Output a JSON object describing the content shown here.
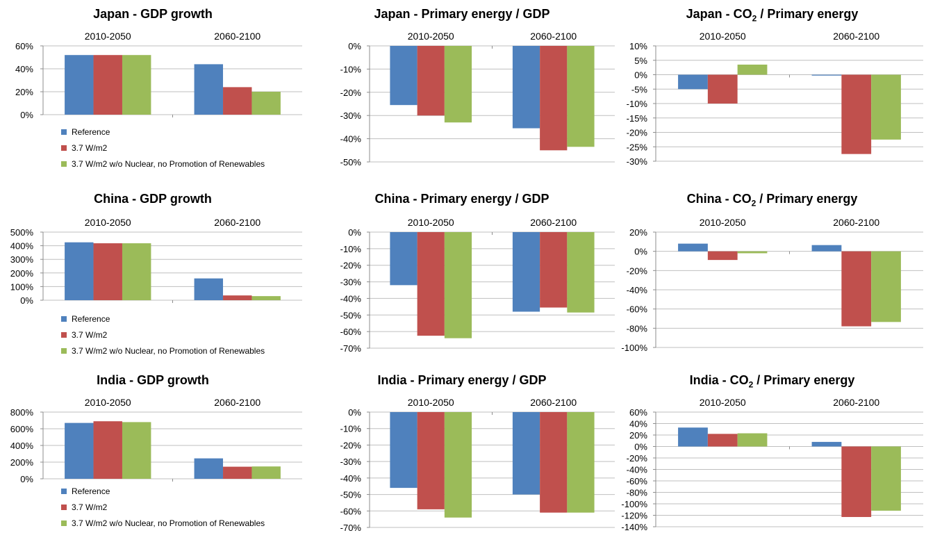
{
  "colors": {
    "reference": "#4F81BD",
    "w37": "#C0504D",
    "w37_nonuc": "#9BBB59"
  },
  "chart_data": [
    {
      "type": "bar",
      "title": "Japan - GDP growth",
      "categories": [
        "2010-2050",
        "2060-2100"
      ],
      "series": [
        {
          "name": "Reference",
          "values": [
            52,
            44
          ]
        },
        {
          "name": "3.7 W/m2",
          "values": [
            52,
            24
          ]
        },
        {
          "name": "3.7 W/m2 w/o Nuclear, no Promotion of Renewables",
          "values": [
            52,
            20
          ]
        }
      ],
      "ylim": [
        0,
        60
      ],
      "yticks": [
        0,
        20,
        40,
        60
      ],
      "ytick_labels": [
        "0%",
        "20%",
        "40%",
        "60%"
      ],
      "legend": "bottom-left"
    },
    {
      "type": "bar",
      "title": "Japan - Primary energy / GDP",
      "categories": [
        "2010-2050",
        "2060-2100"
      ],
      "series": [
        {
          "name": "Reference",
          "values": [
            -25.5,
            -35.5
          ]
        },
        {
          "name": "3.7 W/m2",
          "values": [
            -30,
            -45
          ]
        },
        {
          "name": "3.7 W/m2 w/o Nuclear, no Promotion of Renewables",
          "values": [
            -33,
            -43.5
          ]
        }
      ],
      "ylim": [
        -50,
        0
      ],
      "yticks": [
        0,
        -10,
        -20,
        -30,
        -40,
        -50
      ],
      "ytick_labels": [
        "0%",
        "-10%",
        "-20%",
        "-30%",
        "-40%",
        "-50%"
      ]
    },
    {
      "type": "bar",
      "title": "Japan - CO",
      "title_sub": "2",
      "title_rest": " / Primary energy",
      "categories": [
        "2010-2050",
        "2060-2100"
      ],
      "series": [
        {
          "name": "Reference",
          "values": [
            -5,
            -0.3
          ]
        },
        {
          "name": "3.7 W/m2",
          "values": [
            -10,
            -27.5
          ]
        },
        {
          "name": "3.7 W/m2 w/o Nuclear, no Promotion of Renewables",
          "values": [
            3.5,
            -22.5
          ]
        }
      ],
      "ylim": [
        -30,
        10
      ],
      "yticks": [
        10,
        5,
        0,
        -5,
        -10,
        -15,
        -20,
        -25,
        -30
      ],
      "ytick_labels": [
        "10%",
        "5%",
        "0%",
        "-5%",
        "-10%",
        "-15%",
        "-20%",
        "-25%",
        "-30%"
      ]
    },
    {
      "type": "bar",
      "title": "China - GDP growth",
      "categories": [
        "2010-2050",
        "2060-2100"
      ],
      "series": [
        {
          "name": "Reference",
          "values": [
            425,
            160
          ]
        },
        {
          "name": "3.7 W/m2",
          "values": [
            418,
            35
          ]
        },
        {
          "name": "3.7 W/m2 w/o Nuclear, no Promotion of Renewables",
          "values": [
            418,
            30
          ]
        }
      ],
      "ylim": [
        0,
        500
      ],
      "yticks": [
        0,
        100,
        200,
        300,
        400,
        500
      ],
      "ytick_labels": [
        "0%",
        "100%",
        "200%",
        "300%",
        "400%",
        "500%"
      ],
      "legend": "bottom-left"
    },
    {
      "type": "bar",
      "title": "China - Primary energy / GDP",
      "categories": [
        "2010-2050",
        "2060-2100"
      ],
      "series": [
        {
          "name": "Reference",
          "values": [
            -32,
            -48
          ]
        },
        {
          "name": "3.7 W/m2",
          "values": [
            -62.5,
            -45.5
          ]
        },
        {
          "name": "3.7 W/m2 w/o Nuclear, no Promotion of Renewables",
          "values": [
            -64,
            -48.5
          ]
        }
      ],
      "ylim": [
        -70,
        0
      ],
      "yticks": [
        0,
        -10,
        -20,
        -30,
        -40,
        -50,
        -60,
        -70
      ],
      "ytick_labels": [
        "0%",
        "-10%",
        "-20%",
        "-30%",
        "-40%",
        "-50%",
        "-60%",
        "-70%"
      ]
    },
    {
      "type": "bar",
      "title": "China - CO",
      "title_sub": "2",
      "title_rest": " / Primary energy",
      "categories": [
        "2010-2050",
        "2060-2100"
      ],
      "series": [
        {
          "name": "Reference",
          "values": [
            8,
            6.5
          ]
        },
        {
          "name": "3.7 W/m2",
          "values": [
            -9,
            -78
          ]
        },
        {
          "name": "3.7 W/m2 w/o Nuclear, no Promotion of Renewables",
          "values": [
            -2,
            -73.5
          ]
        }
      ],
      "ylim": [
        -100,
        20
      ],
      "yticks": [
        20,
        0,
        -20,
        -40,
        -60,
        -80,
        -100
      ],
      "ytick_labels": [
        "20%",
        "0%",
        "-20%",
        "-40%",
        "-60%",
        "-80%",
        "-100%"
      ]
    },
    {
      "type": "bar",
      "title": "India - GDP growth",
      "categories": [
        "2010-2050",
        "2060-2100"
      ],
      "series": [
        {
          "name": "Reference",
          "values": [
            670,
            245
          ]
        },
        {
          "name": "3.7 W/m2",
          "values": [
            690,
            145
          ]
        },
        {
          "name": "3.7 W/m2 w/o Nuclear, no Promotion of Renewables",
          "values": [
            680,
            148
          ]
        }
      ],
      "ylim": [
        0,
        800
      ],
      "yticks": [
        0,
        200,
        400,
        600,
        800
      ],
      "ytick_labels": [
        "0%",
        "200%",
        "400%",
        "600%",
        "800%"
      ],
      "legend": "bottom-left"
    },
    {
      "type": "bar",
      "title": "India - Primary energy / GDP",
      "categories": [
        "2010-2050",
        "2060-2100"
      ],
      "series": [
        {
          "name": "Reference",
          "values": [
            -46,
            -50
          ]
        },
        {
          "name": "3.7 W/m2",
          "values": [
            -59,
            -61
          ]
        },
        {
          "name": "3.7 W/m2 w/o Nuclear, no Promotion of Renewables",
          "values": [
            -64,
            -61
          ]
        }
      ],
      "ylim": [
        -70,
        0
      ],
      "yticks": [
        0,
        -10,
        -20,
        -30,
        -40,
        -50,
        -60,
        -70
      ],
      "ytick_labels": [
        "0%",
        "-10%",
        "-20%",
        "-30%",
        "-40%",
        "-50%",
        "-60%",
        "-70%"
      ]
    },
    {
      "type": "bar",
      "title": "India - CO",
      "title_sub": "2",
      "title_rest": " / Primary energy",
      "categories": [
        "2010-2050",
        "2060-2100"
      ],
      "series": [
        {
          "name": "Reference",
          "values": [
            33,
            8
          ]
        },
        {
          "name": "3.7 W/m2",
          "values": [
            22,
            -123
          ]
        },
        {
          "name": "3.7 W/m2 w/o Nuclear, no Promotion of Renewables",
          "values": [
            23,
            -112
          ]
        }
      ],
      "ylim": [
        -140,
        60
      ],
      "yticks": [
        60,
        40,
        20,
        0,
        -20,
        -40,
        -60,
        -80,
        -100,
        -120,
        -140
      ],
      "ytick_labels": [
        "60%",
        "40%",
        "20%",
        "0%",
        "-20%",
        "-40%",
        "-60%",
        "-80%",
        "-100%",
        "-120%",
        "-140%"
      ]
    }
  ]
}
